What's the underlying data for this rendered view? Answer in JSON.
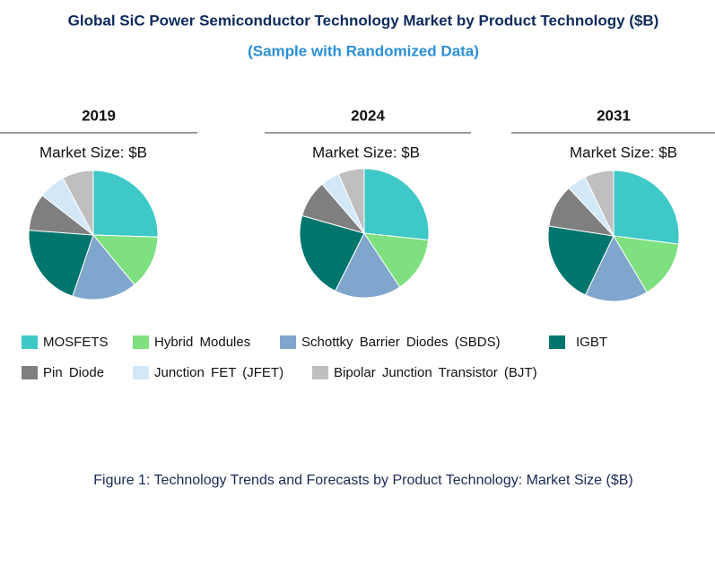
{
  "title": "Global SiC Power Semiconductor Technology Market by Product Technology ($B)",
  "subtitle": "(Sample with Randomized Data)",
  "legend": {
    "categories": [
      "MOSFETS",
      "Hybrid Modules",
      "Schottky Barrier Diodes (SBDS)",
      "IGBT",
      "Pin Diode",
      "Junction FET (JFET)",
      "Bipolar Junction Transistor (BJT)"
    ],
    "colors": [
      "#3ec8c8",
      "#7ee07e",
      "#7fa6cc",
      "#00756c",
      "#7f7f7f",
      "#d3e8f7",
      "#bfbfbf"
    ]
  },
  "chart_data": [
    {
      "type": "pie",
      "title": "2019",
      "subtitle": "Market Size: $B",
      "values": [
        25.5,
        13.5,
        16.2,
        21,
        9.3,
        6.7,
        7.8
      ]
    },
    {
      "type": "pie",
      "title": "2024",
      "subtitle": "Market Size: $B",
      "values": [
        26.7,
        14,
        16.7,
        22,
        9.3,
        4.8,
        6.5
      ]
    },
    {
      "type": "pie",
      "title": "2031",
      "subtitle": "Market Size: $B",
      "values": [
        27,
        14.5,
        15.6,
        20.3,
        10.6,
        4.8,
        7.2
      ]
    }
  ],
  "caption": "Figure 1: Technology Trends and Forecasts by Product Technology: Market Size ($B)"
}
